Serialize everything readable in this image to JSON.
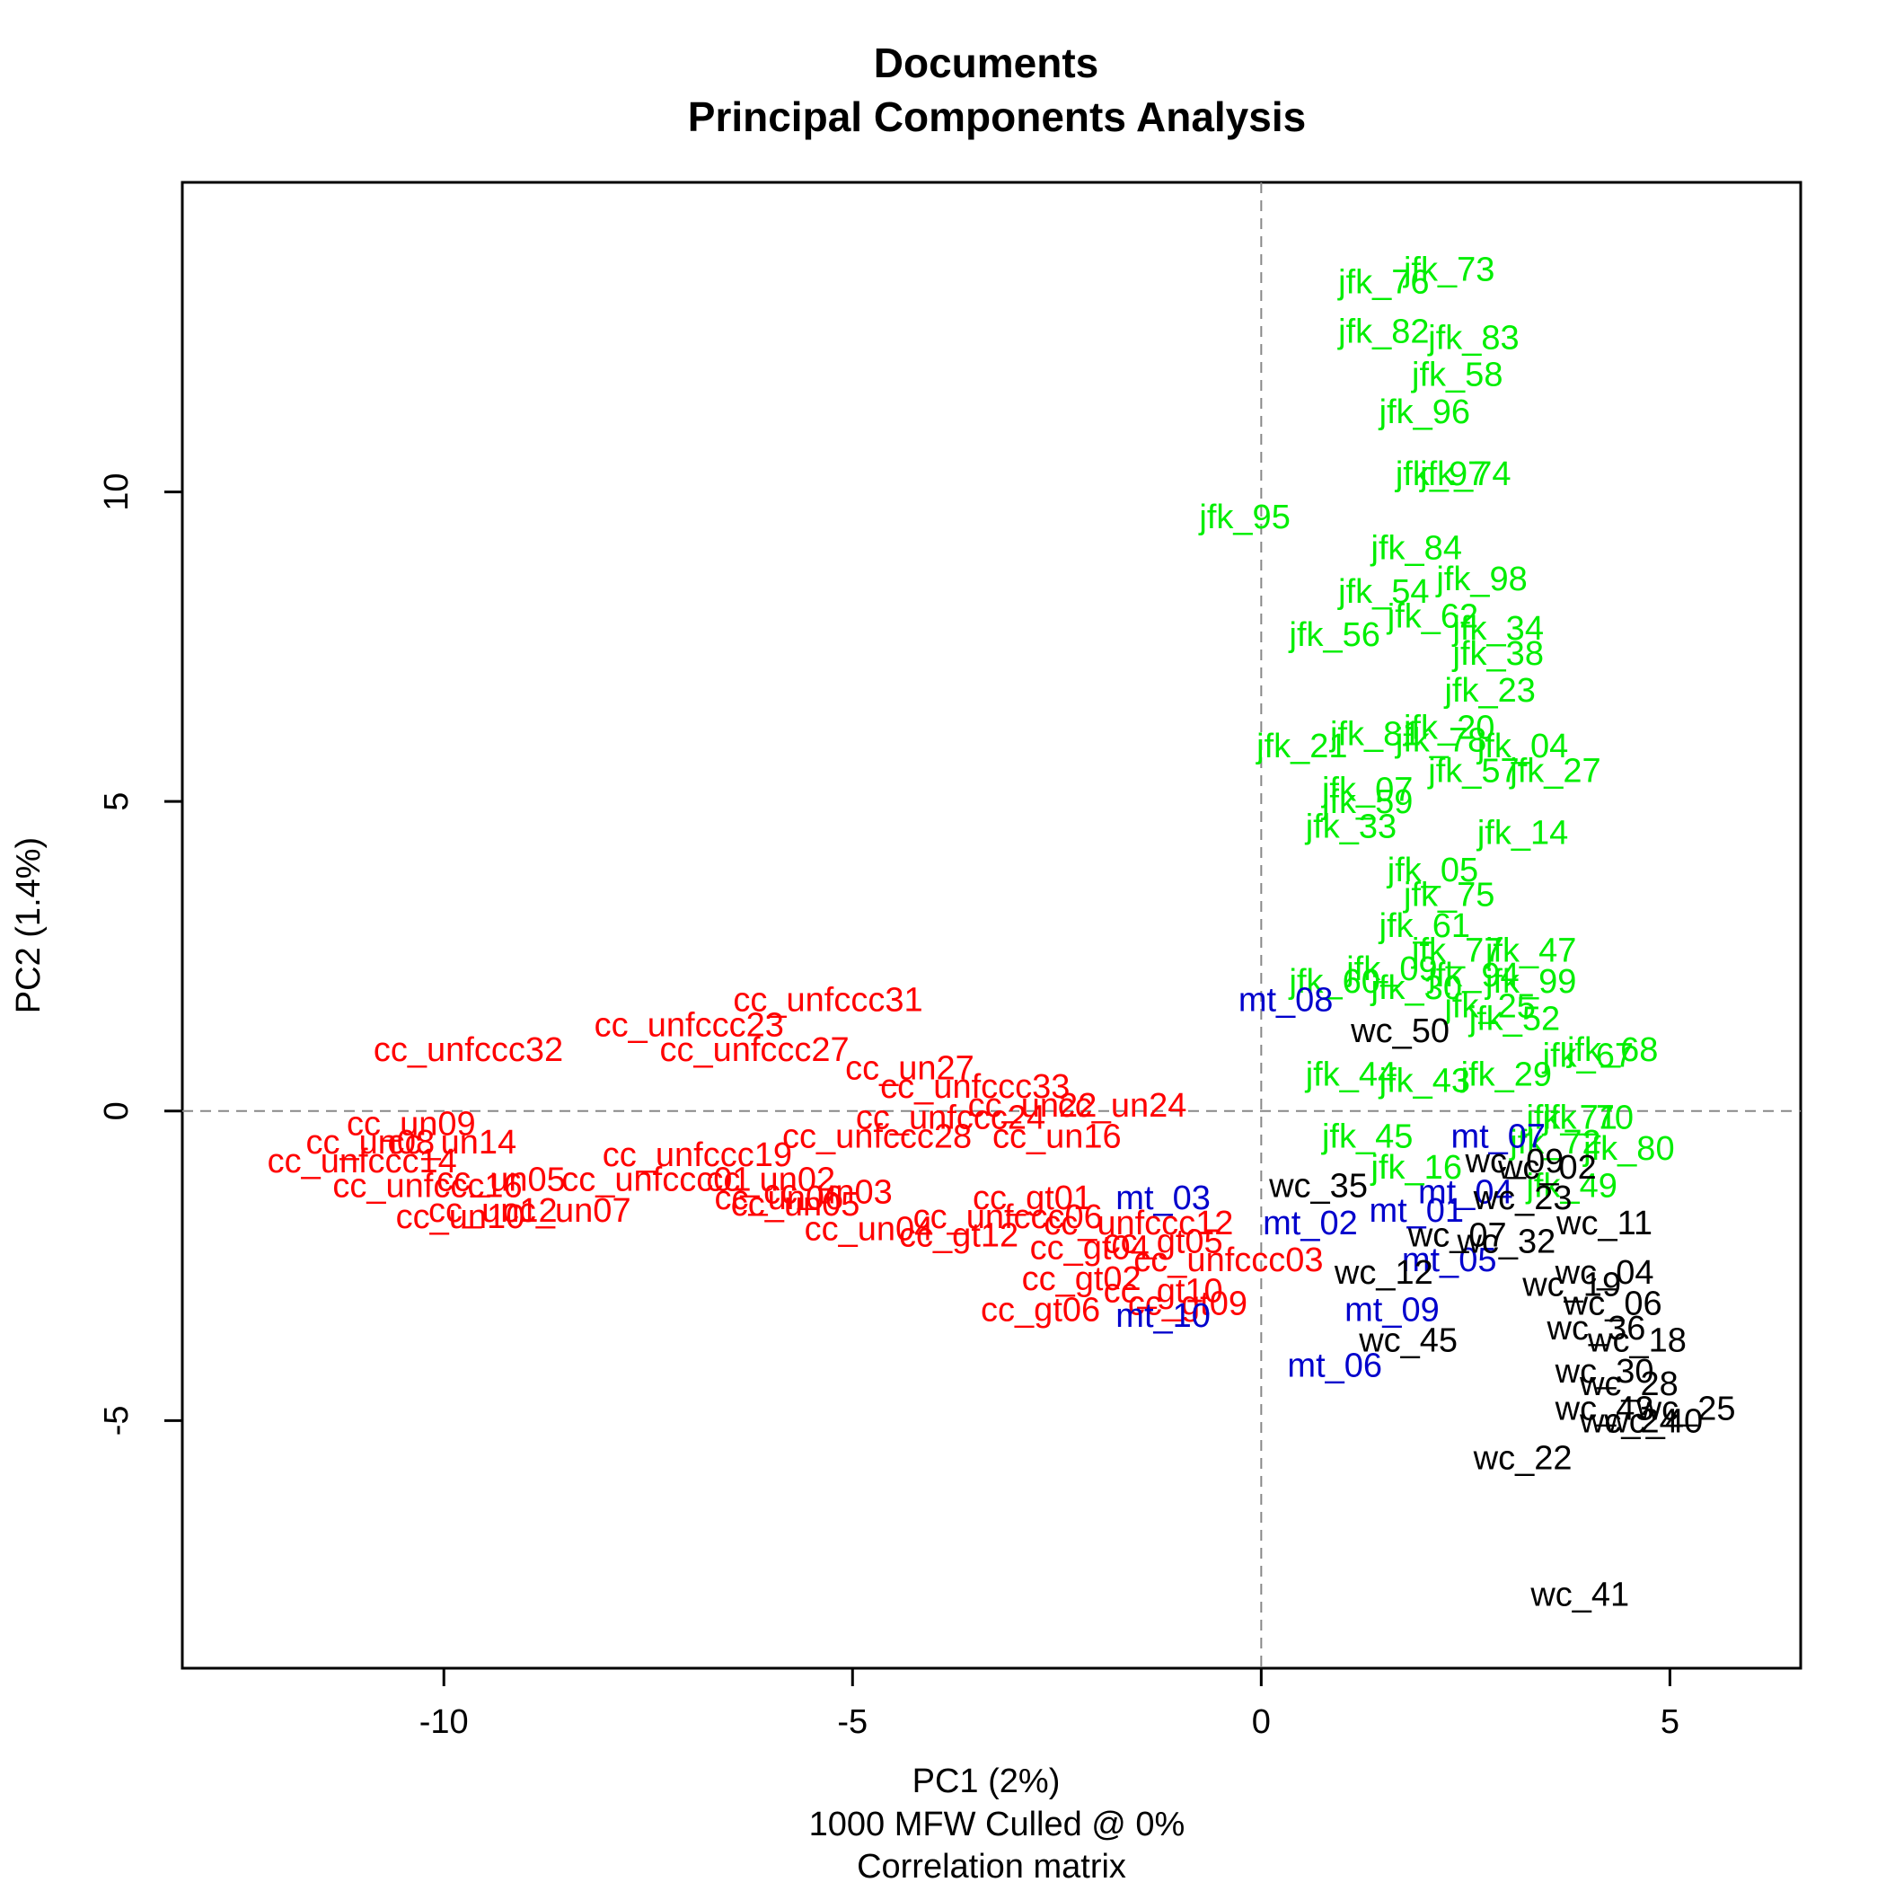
{
  "chart_data": {
    "type": "scatter",
    "title": "Documents",
    "subtitle": "Principal Components Analysis",
    "xlabel": "PC1 (2%)",
    "ylabel": "PC2 (1.4%)",
    "footer_lines": [
      "1000 MFW  Culled @ 0%",
      "Correlation matrix"
    ],
    "xlim": [
      -13.2,
      6.6
    ],
    "ylim": [
      -9.0,
      15.0
    ],
    "x_ticks": [
      -10,
      -5,
      0,
      5
    ],
    "x_tick_labels": [
      "-10",
      "-5",
      "0",
      "5"
    ],
    "y_ticks": [
      -5,
      0,
      5,
      10
    ],
    "y_tick_labels": [
      "-5",
      "0",
      "5",
      "10"
    ],
    "reference_lines": {
      "x": 0,
      "y": 0,
      "style": "dashed"
    },
    "colors": {
      "cc": "#ff0000",
      "jfk": "#00ee00",
      "mt": "#0000cc",
      "wc": "#000000"
    },
    "series": [
      {
        "color": "#ff0000",
        "points": [
          {
            "label": "cc_unfccc31",
            "x": -5.3,
            "y": 1.8
          },
          {
            "label": "cc_unfccc23",
            "x": -7.0,
            "y": 1.4
          },
          {
            "label": "cc_unfccc32",
            "x": -9.7,
            "y": 1.0
          },
          {
            "label": "cc_unfccc27",
            "x": -6.2,
            "y": 1.0
          },
          {
            "label": "cc_un27",
            "x": -4.3,
            "y": 0.7
          },
          {
            "label": "cc_unfccc33",
            "x": -3.5,
            "y": 0.4
          },
          {
            "label": "cc_un22",
            "x": -2.8,
            "y": 0.1
          },
          {
            "label": "cc_un24",
            "x": -1.7,
            "y": 0.1
          },
          {
            "label": "cc_unfccc24",
            "x": -3.8,
            "y": -0.1
          },
          {
            "label": "cc_unfccc28",
            "x": -4.7,
            "y": -0.4
          },
          {
            "label": "cc_un16",
            "x": -2.5,
            "y": -0.4
          },
          {
            "label": "cc_unfccc19",
            "x": -6.9,
            "y": -0.7
          },
          {
            "label": "cc_un09",
            "x": -10.4,
            "y": -0.2
          },
          {
            "label": "cc_un08",
            "x": -10.9,
            "y": -0.5
          },
          {
            "label": "cc_un14",
            "x": -9.9,
            "y": -0.5
          },
          {
            "label": "cc_unfccc14",
            "x": -11.0,
            "y": -0.8
          },
          {
            "label": "cc_unfccc16",
            "x": -10.2,
            "y": -1.2
          },
          {
            "label": "cc_un05",
            "x": -9.3,
            "y": -1.1
          },
          {
            "label": "cc_unfccc01",
            "x": -7.4,
            "y": -1.1
          },
          {
            "label": "cc_un02",
            "x": -6.0,
            "y": -1.1
          },
          {
            "label": "cc_un03",
            "x": -5.3,
            "y": -1.3
          },
          {
            "label": "cc_un06",
            "x": -5.9,
            "y": -1.4
          },
          {
            "label": "cc_un05",
            "x": -5.7,
            "y": -1.5
          },
          {
            "label": "cc_un12",
            "x": -9.4,
            "y": -1.6
          },
          {
            "label": "cc_un07",
            "x": -8.5,
            "y": -1.6
          },
          {
            "label": "cc_un10",
            "x": -9.8,
            "y": -1.7
          },
          {
            "label": "cc_gt01",
            "x": -2.8,
            "y": -1.4
          },
          {
            "label": "cc_unfccc06",
            "x": -3.1,
            "y": -1.7
          },
          {
            "label": "cc_un04",
            "x": -4.8,
            "y": -1.9
          },
          {
            "label": "cc_gt12",
            "x": -3.7,
            "y": -2.0
          },
          {
            "label": "cc_unfccc12",
            "x": -1.5,
            "y": -1.8
          },
          {
            "label": "cc_gt04",
            "x": -2.1,
            "y": -2.2
          },
          {
            "label": "cc_gt05",
            "x": -1.2,
            "y": -2.1
          },
          {
            "label": "cc_unfccc03",
            "x": -0.4,
            "y": -2.4
          },
          {
            "label": "cc_gt02",
            "x": -2.2,
            "y": -2.7
          },
          {
            "label": "cc_gt10",
            "x": -1.2,
            "y": -2.9
          },
          {
            "label": "cc_gt06",
            "x": -2.7,
            "y": -3.2
          },
          {
            "label": "cc_gt09",
            "x": -0.9,
            "y": -3.1
          }
        ]
      },
      {
        "color": "#00ee00",
        "points": [
          {
            "label": "jfk_73",
            "x": 2.3,
            "y": 13.6
          },
          {
            "label": "jfk_76",
            "x": 1.5,
            "y": 13.4
          },
          {
            "label": "jfk_82",
            "x": 1.5,
            "y": 12.6
          },
          {
            "label": "jfk_83",
            "x": 2.6,
            "y": 12.5
          },
          {
            "label": "jfk_58",
            "x": 2.4,
            "y": 11.9
          },
          {
            "label": "jfk_96",
            "x": 2.0,
            "y": 11.3
          },
          {
            "label": "jfk_74",
            "x": 2.5,
            "y": 10.3
          },
          {
            "label": "jfk_97",
            "x": 2.2,
            "y": 10.3
          },
          {
            "label": "jfk_95",
            "x": -0.2,
            "y": 9.6
          },
          {
            "label": "jfk_84",
            "x": 1.9,
            "y": 9.1
          },
          {
            "label": "jfk_98",
            "x": 2.7,
            "y": 8.6
          },
          {
            "label": "jfk_54",
            "x": 1.5,
            "y": 8.4
          },
          {
            "label": "jfk_62",
            "x": 2.1,
            "y": 8.0
          },
          {
            "label": "jfk_34",
            "x": 2.9,
            "y": 7.8
          },
          {
            "label": "jfk_56",
            "x": 0.9,
            "y": 7.7
          },
          {
            "label": "jfk_38",
            "x": 2.9,
            "y": 7.4
          },
          {
            "label": "jfk_23",
            "x": 2.8,
            "y": 6.8
          },
          {
            "label": "jfk_20",
            "x": 2.3,
            "y": 6.2
          },
          {
            "label": "jfk_81",
            "x": 1.4,
            "y": 6.1
          },
          {
            "label": "jfk_78",
            "x": 2.2,
            "y": 6.0
          },
          {
            "label": "jfk_21",
            "x": 0.5,
            "y": 5.9
          },
          {
            "label": "jfk_04",
            "x": 3.2,
            "y": 5.9
          },
          {
            "label": "jfk_57",
            "x": 2.6,
            "y": 5.5
          },
          {
            "label": "jfk_27",
            "x": 3.6,
            "y": 5.5
          },
          {
            "label": "jfk_07",
            "x": 1.3,
            "y": 5.2
          },
          {
            "label": "jfk_59",
            "x": 1.3,
            "y": 5.0
          },
          {
            "label": "jfk_33",
            "x": 1.1,
            "y": 4.6
          },
          {
            "label": "jfk_14",
            "x": 3.2,
            "y": 4.5
          },
          {
            "label": "jfk_05",
            "x": 2.1,
            "y": 3.9
          },
          {
            "label": "jfk_75",
            "x": 2.3,
            "y": 3.5
          },
          {
            "label": "jfk_61",
            "x": 2.0,
            "y": 3.0
          },
          {
            "label": "jfk_77",
            "x": 2.4,
            "y": 2.6
          },
          {
            "label": "jfk_47",
            "x": 3.3,
            "y": 2.6
          },
          {
            "label": "jfk_09",
            "x": 1.6,
            "y": 2.3
          },
          {
            "label": "jfk_94",
            "x": 2.6,
            "y": 2.2
          },
          {
            "label": "jfk_60",
            "x": 0.9,
            "y": 2.1
          },
          {
            "label": "jfk_30",
            "x": 1.9,
            "y": 2.0
          },
          {
            "label": "jfk_99",
            "x": 3.3,
            "y": 2.1
          },
          {
            "label": "jfk_25",
            "x": 2.8,
            "y": 1.7
          },
          {
            "label": "jfk_52",
            "x": 3.1,
            "y": 1.5
          },
          {
            "label": "jfk_68",
            "x": 4.3,
            "y": 1.0
          },
          {
            "label": "jfk_67",
            "x": 4.0,
            "y": 0.9
          },
          {
            "label": "jfk_44",
            "x": 1.1,
            "y": 0.6
          },
          {
            "label": "jfk_29",
            "x": 3.0,
            "y": 0.6
          },
          {
            "label": "jfk_43",
            "x": 2.0,
            "y": 0.5
          },
          {
            "label": "jfk_70",
            "x": 4.0,
            "y": -0.1
          },
          {
            "label": "jfk_71",
            "x": 3.8,
            "y": -0.1
          },
          {
            "label": "jfk_72",
            "x": 3.6,
            "y": -0.5
          },
          {
            "label": "jfk_80",
            "x": 4.5,
            "y": -0.6
          },
          {
            "label": "jfk_45",
            "x": 1.3,
            "y": -0.4
          },
          {
            "label": "jfk_16",
            "x": 1.9,
            "y": -0.9
          },
          {
            "label": "jfk_49",
            "x": 3.8,
            "y": -1.2
          }
        ]
      },
      {
        "color": "#0000cc",
        "points": [
          {
            "label": "mt_08",
            "x": 0.3,
            "y": 1.8
          },
          {
            "label": "mt_07",
            "x": 2.9,
            "y": -0.4
          },
          {
            "label": "mt_03",
            "x": -1.2,
            "y": -1.4
          },
          {
            "label": "mt_04",
            "x": 2.5,
            "y": -1.3
          },
          {
            "label": "mt_01",
            "x": 1.9,
            "y": -1.6
          },
          {
            "label": "mt_02",
            "x": 0.6,
            "y": -1.8
          },
          {
            "label": "mt_05",
            "x": 2.3,
            "y": -2.4
          },
          {
            "label": "mt_09",
            "x": 1.6,
            "y": -3.2
          },
          {
            "label": "mt_10",
            "x": -1.2,
            "y": -3.3
          },
          {
            "label": "mt_06",
            "x": 0.9,
            "y": -4.1
          }
        ]
      },
      {
        "color": "#000000",
        "points": [
          {
            "label": "wc_50",
            "x": 1.7,
            "y": 1.3
          },
          {
            "label": "wc_09",
            "x": 3.1,
            "y": -0.8
          },
          {
            "label": "wc_02",
            "x": 3.5,
            "y": -0.9
          },
          {
            "label": "wc_35",
            "x": 0.7,
            "y": -1.2
          },
          {
            "label": "wc_23",
            "x": 3.2,
            "y": -1.4
          },
          {
            "label": "wc_11",
            "x": 4.2,
            "y": -1.8
          },
          {
            "label": "wc_07",
            "x": 2.4,
            "y": -2.0
          },
          {
            "label": "wc_32",
            "x": 3.0,
            "y": -2.1
          },
          {
            "label": "wc_12",
            "x": 1.5,
            "y": -2.6
          },
          {
            "label": "wc_04",
            "x": 4.2,
            "y": -2.6
          },
          {
            "label": "wc_19",
            "x": 3.8,
            "y": -2.8
          },
          {
            "label": "wc_06",
            "x": 4.3,
            "y": -3.1
          },
          {
            "label": "wc_36",
            "x": 4.1,
            "y": -3.5
          },
          {
            "label": "wc_18",
            "x": 4.6,
            "y": -3.7
          },
          {
            "label": "wc_45",
            "x": 1.8,
            "y": -3.7
          },
          {
            "label": "wc_30",
            "x": 4.2,
            "y": -4.2
          },
          {
            "label": "wc_28",
            "x": 4.5,
            "y": -4.4
          },
          {
            "label": "wc_25",
            "x": 5.2,
            "y": -4.8
          },
          {
            "label": "wc_43",
            "x": 4.2,
            "y": -4.8
          },
          {
            "label": "wc_24",
            "x": 4.5,
            "y": -5.0
          },
          {
            "label": "wc_40",
            "x": 4.8,
            "y": -5.0
          },
          {
            "label": "wc_22",
            "x": 3.2,
            "y": -5.6
          },
          {
            "label": "wc_41",
            "x": 3.9,
            "y": -7.8
          }
        ]
      }
    ]
  }
}
